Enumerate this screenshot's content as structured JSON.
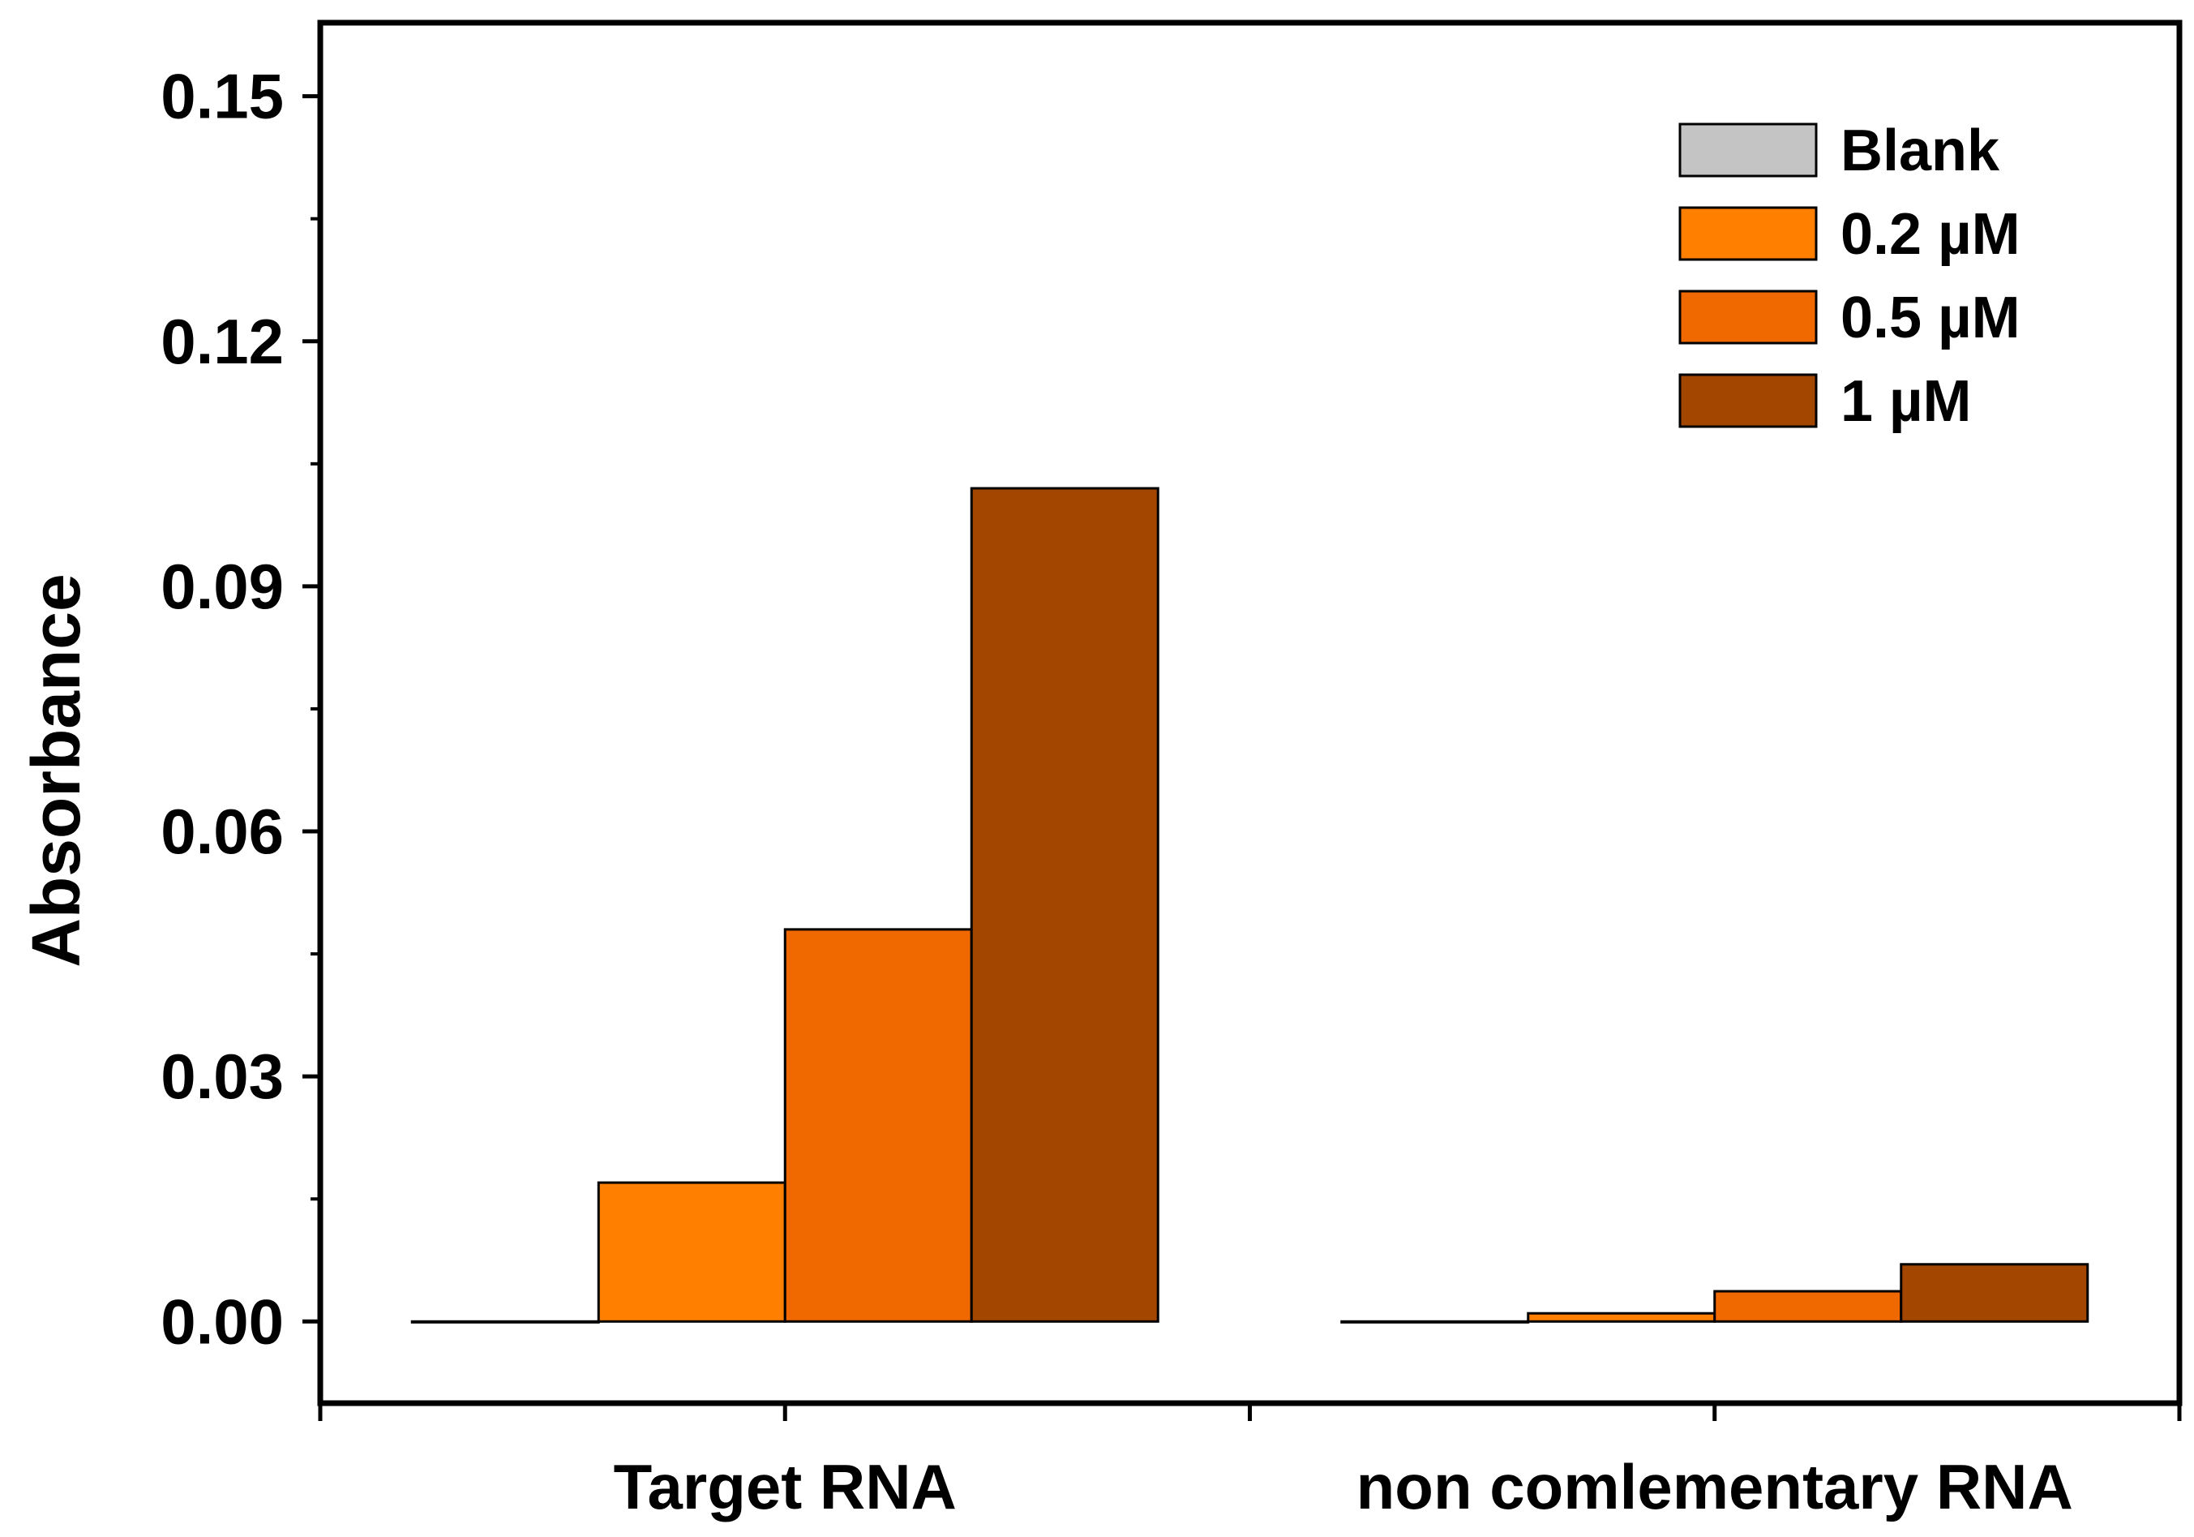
{
  "chart_data": {
    "type": "bar",
    "ylabel": "Absorbance",
    "xlabel": "",
    "ylim": [
      -0.01,
      0.159
    ],
    "yticks": [
      0.0,
      0.03,
      0.06,
      0.09,
      0.12,
      0.15
    ],
    "ytick_labels": [
      "0.00",
      "0.03",
      "0.06",
      "0.09",
      "0.12",
      "0.15"
    ],
    "categories": [
      "Target RNA",
      "non comlementary RNA"
    ],
    "series": [
      {
        "name": "Blank",
        "color": "#c4c4c4",
        "values": [
          0.0,
          0.0
        ]
      },
      {
        "name": "0.2 µM",
        "color": "#ff8000",
        "values": [
          0.017,
          0.001
        ]
      },
      {
        "name": "0.5 µM",
        "color": "#ef6800",
        "values": [
          0.048,
          0.0037
        ]
      },
      {
        "name": "1 µM",
        "color": "#a34600",
        "values": [
          0.102,
          0.007
        ]
      }
    ],
    "legend": "top-right",
    "grid": false
  }
}
